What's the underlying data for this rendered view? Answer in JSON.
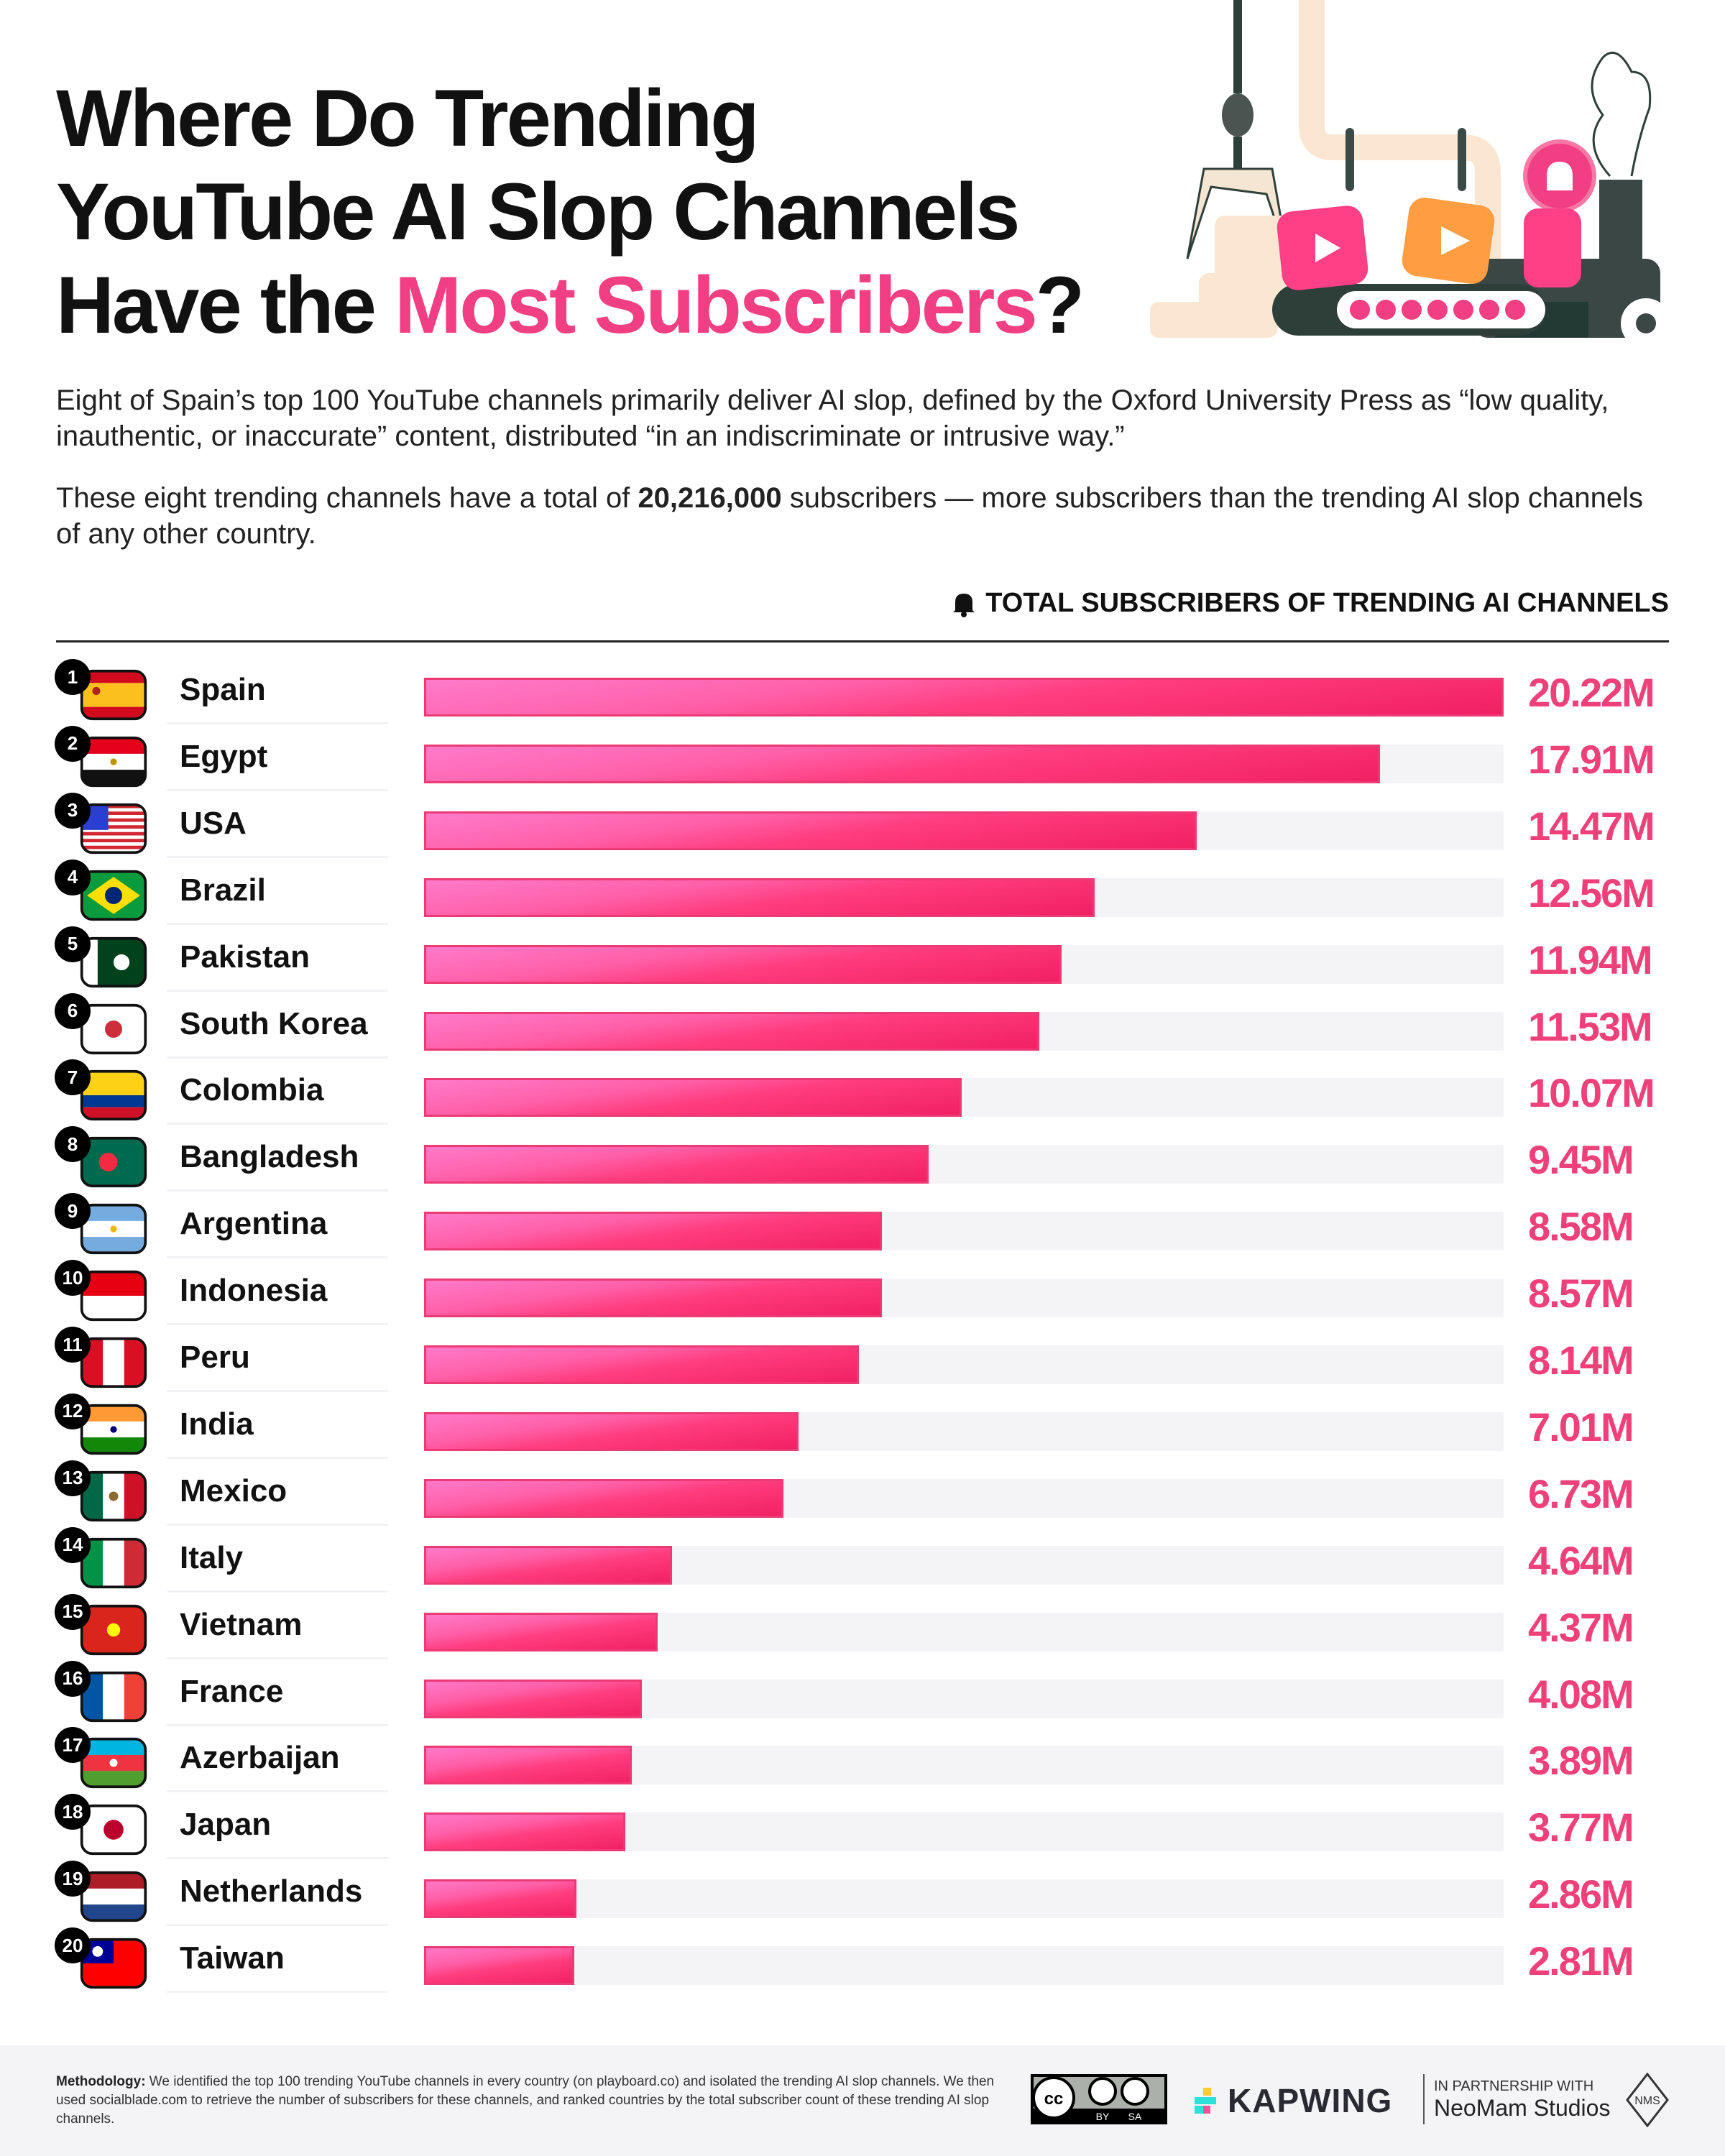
{
  "title": {
    "line1": "Where Do Trending",
    "line2": "YouTube AI Slop Channels",
    "line3_plain": "Have the ",
    "line3_highlight": "Most Subscribers",
    "line3_end": "?"
  },
  "intro": {
    "p1": "Eight of Spain’s top 100 YouTube channels primarily deliver AI slop, defined by the Oxford University Press as “low quality, inauthentic, or inaccurate” content, distributed “in an indiscriminate or intrusive way.”",
    "p2_pre": "These eight trending channels have a total of ",
    "p2_bold": "20,216,000",
    "p2_post": " subscribers — more subscribers than the trending AI slop channels of any other country."
  },
  "colors": {
    "accent": "#f23e82",
    "bar": "#ff3d7f",
    "track": "#f4f3f6",
    "value": "#f0407a"
  },
  "chart_data": {
    "type": "bar",
    "orientation": "horizontal",
    "title": "TOTAL SUBSCRIBERS OF TRENDING AI CHANNELS",
    "legend_icon": "bell-icon",
    "unit": "M",
    "xlim": [
      0,
      20.22
    ],
    "rows": [
      {
        "rank": "1",
        "country": "Spain",
        "value": 20.22,
        "label": "20.22M",
        "flag": "es"
      },
      {
        "rank": "2",
        "country": "Egypt",
        "value": 17.91,
        "label": "17.91M",
        "flag": "eg"
      },
      {
        "rank": "3",
        "country": "USA",
        "value": 14.47,
        "label": "14.47M",
        "flag": "us"
      },
      {
        "rank": "4",
        "country": "Brazil",
        "value": 12.56,
        "label": "12.56M",
        "flag": "br"
      },
      {
        "rank": "5",
        "country": "Pakistan",
        "value": 11.94,
        "label": "11.94M",
        "flag": "pk"
      },
      {
        "rank": "6",
        "country": "South Korea",
        "value": 11.53,
        "label": "11.53M",
        "flag": "kr"
      },
      {
        "rank": "7",
        "country": "Colombia",
        "value": 10.07,
        "label": "10.07M",
        "flag": "co"
      },
      {
        "rank": "8",
        "country": "Bangladesh",
        "value": 9.45,
        "label": "9.45M",
        "flag": "bd"
      },
      {
        "rank": "9",
        "country": "Argentina",
        "value": 8.58,
        "label": "8.58M",
        "flag": "ar"
      },
      {
        "rank": "10",
        "country": "Indonesia",
        "value": 8.57,
        "label": "8.57M",
        "flag": "id"
      },
      {
        "rank": "11",
        "country": "Peru",
        "value": 8.14,
        "label": "8.14M",
        "flag": "pe"
      },
      {
        "rank": "12",
        "country": "India",
        "value": 7.01,
        "label": "7.01M",
        "flag": "in"
      },
      {
        "rank": "13",
        "country": "Mexico",
        "value": 6.73,
        "label": "6.73M",
        "flag": "mx"
      },
      {
        "rank": "14",
        "country": "Italy",
        "value": 4.64,
        "label": "4.64M",
        "flag": "it"
      },
      {
        "rank": "15",
        "country": "Vietnam",
        "value": 4.37,
        "label": "4.37M",
        "flag": "vn"
      },
      {
        "rank": "16",
        "country": "France",
        "value": 4.08,
        "label": "4.08M",
        "flag": "fr"
      },
      {
        "rank": "17",
        "country": "Azerbaijan",
        "value": 3.89,
        "label": "3.89M",
        "flag": "az"
      },
      {
        "rank": "18",
        "country": "Japan",
        "value": 3.77,
        "label": "3.77M",
        "flag": "jp"
      },
      {
        "rank": "19",
        "country": "Netherlands",
        "value": 2.86,
        "label": "2.86M",
        "flag": "nl"
      },
      {
        "rank": "20",
        "country": "Taiwan",
        "value": 2.81,
        "label": "2.81M",
        "flag": "tw"
      }
    ]
  },
  "footer": {
    "method_label": "Methodology:",
    "method_text": " We identified the top 100 trending YouTube channels in every country (on playboard.co) and isolated the trending AI slop channels. We then used socialblade.com to retrieve the number of subscribers for these channels, and ranked countries by the total subscriber count of these trending AI slop channels.",
    "license": "CC BY SA",
    "brand": "KAPWING",
    "partner_label": "IN PARTNERSHIP WITH",
    "partner": "NeoMam Studios"
  }
}
